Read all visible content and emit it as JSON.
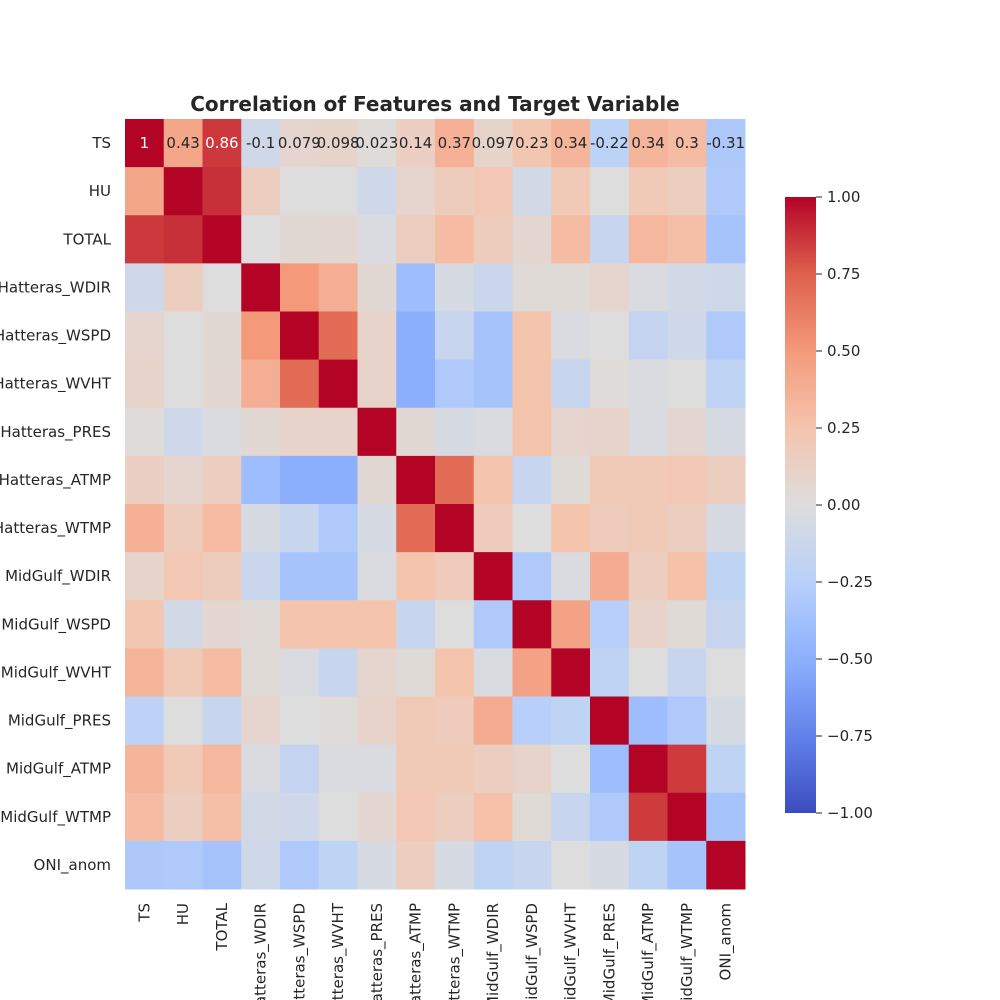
{
  "chart_data": {
    "type": "heatmap",
    "title": "Correlation of Features and Target Variable",
    "xlabel": "",
    "ylabel": "",
    "row_labels": [
      "TS",
      "HU",
      "TOTAL",
      "nHatteras_WDIR",
      "Hatteras_WSPD",
      "Hatteras_WVHT",
      "nHatteras_PRES",
      "nHatteras_ATMP",
      "Hatteras_WTMP",
      "MidGulf_WDIR",
      "MidGulf_WSPD",
      "MidGulf_WVHT",
      "MidGulf_PRES",
      "MidGulf_ATMP",
      "MidGulf_WTMP",
      "ONI_anom"
    ],
    "col_labels": [
      "TS",
      "HU",
      "TOTAL",
      "atteras_WDIR",
      "atteras_WSPD",
      "atteras_WVHT",
      "atteras_PRES",
      "atteras_ATMP",
      "atteras_WTMP",
      "MidGulf_WDIR",
      "MidGulf_WSPD",
      "MidGulf_WVHT",
      "MidGulf_PRES",
      "MidGulf_ATMP",
      "MidGulf_WTMP",
      "ONI_anom"
    ],
    "colormap": "coolwarm",
    "color_range": [
      -1.0,
      1.0
    ],
    "colorbar_ticks": [
      "1.00",
      "0.75",
      "0.50",
      "0.25",
      "0.00",
      "−0.25",
      "−0.50",
      "−0.75",
      "−1.00"
    ],
    "colorbar_tick_values": [
      1.0,
      0.75,
      0.5,
      0.25,
      0.0,
      -0.25,
      -0.5,
      -0.75,
      -1.0
    ],
    "annotated_row": 0,
    "annotations": [
      "1",
      "0.43",
      "0.86",
      "-0.1",
      "0.079",
      "0.098",
      "0.023",
      "0.14",
      "0.37",
      "0.097",
      "0.23",
      "0.34",
      "-0.22",
      "0.34",
      "0.3",
      "-0.31"
    ],
    "values": [
      [
        1,
        0.43,
        0.86,
        -0.1,
        0.079,
        0.098,
        0.023,
        0.14,
        0.37,
        0.097,
        0.23,
        0.34,
        -0.22,
        0.34,
        0.3,
        -0.31
      ],
      [
        0.43,
        1,
        0.88,
        0.15,
        0.0,
        0.0,
        -0.1,
        0.08,
        0.17,
        0.22,
        -0.08,
        0.2,
        0.0,
        0.2,
        0.15,
        -0.3
      ],
      [
        0.86,
        0.88,
        1,
        0.0,
        0.05,
        0.06,
        -0.03,
        0.15,
        0.3,
        0.17,
        0.07,
        0.3,
        -0.15,
        0.32,
        0.28,
        -0.35
      ],
      [
        -0.1,
        0.15,
        0.0,
        1,
        0.5,
        0.38,
        0.05,
        -0.4,
        -0.05,
        -0.13,
        0.03,
        0.03,
        0.08,
        -0.03,
        -0.08,
        -0.1
      ],
      [
        0.079,
        0.0,
        0.05,
        0.5,
        1,
        0.7,
        0.1,
        -0.5,
        -0.15,
        -0.35,
        0.25,
        -0.03,
        0.0,
        -0.17,
        -0.1,
        -0.3
      ],
      [
        0.098,
        0.0,
        0.06,
        0.38,
        0.7,
        1,
        0.1,
        -0.5,
        -0.3,
        -0.35,
        0.25,
        -0.15,
        0.02,
        -0.03,
        0.0,
        -0.2
      ],
      [
        0.023,
        -0.1,
        -0.03,
        0.05,
        0.1,
        0.1,
        1,
        0.05,
        -0.05,
        -0.03,
        0.25,
        0.08,
        0.1,
        -0.03,
        0.07,
        -0.05
      ],
      [
        0.14,
        0.08,
        0.15,
        -0.4,
        -0.5,
        -0.5,
        0.05,
        1,
        0.7,
        0.25,
        -0.15,
        0.03,
        0.2,
        0.2,
        0.22,
        0.15
      ],
      [
        0.37,
        0.17,
        0.3,
        -0.05,
        -0.15,
        -0.3,
        -0.05,
        0.7,
        1,
        0.18,
        0.0,
        0.25,
        0.18,
        0.2,
        0.15,
        -0.05
      ],
      [
        0.097,
        0.22,
        0.17,
        -0.13,
        -0.35,
        -0.35,
        -0.03,
        0.25,
        0.18,
        1,
        -0.3,
        -0.03,
        0.4,
        0.15,
        0.27,
        -0.2
      ],
      [
        0.23,
        -0.08,
        0.07,
        0.03,
        0.25,
        0.25,
        0.25,
        -0.15,
        0.0,
        -0.3,
        1,
        0.45,
        -0.25,
        0.1,
        0.03,
        -0.15
      ],
      [
        0.34,
        0.2,
        0.3,
        0.03,
        -0.03,
        -0.15,
        0.08,
        0.03,
        0.25,
        -0.03,
        0.45,
        1,
        -0.2,
        0.0,
        -0.15,
        0.0
      ],
      [
        -0.22,
        0.0,
        -0.15,
        0.08,
        0.0,
        0.02,
        0.1,
        0.2,
        0.18,
        0.4,
        -0.25,
        -0.2,
        1,
        -0.4,
        -0.3,
        -0.05
      ],
      [
        0.34,
        0.2,
        0.32,
        -0.03,
        -0.17,
        -0.03,
        -0.03,
        0.2,
        0.2,
        0.15,
        0.1,
        0.0,
        -0.4,
        1,
        0.85,
        -0.2
      ],
      [
        0.3,
        0.15,
        0.28,
        -0.08,
        -0.1,
        0.0,
        0.07,
        0.22,
        0.15,
        0.27,
        0.03,
        -0.15,
        -0.3,
        0.85,
        1,
        -0.35
      ],
      [
        -0.31,
        -0.3,
        -0.35,
        -0.1,
        -0.3,
        -0.2,
        -0.05,
        0.15,
        -0.05,
        -0.2,
        -0.15,
        0.0,
        -0.05,
        -0.2,
        -0.35,
        1
      ]
    ],
    "legend": "colorbar-right",
    "grid": false
  }
}
